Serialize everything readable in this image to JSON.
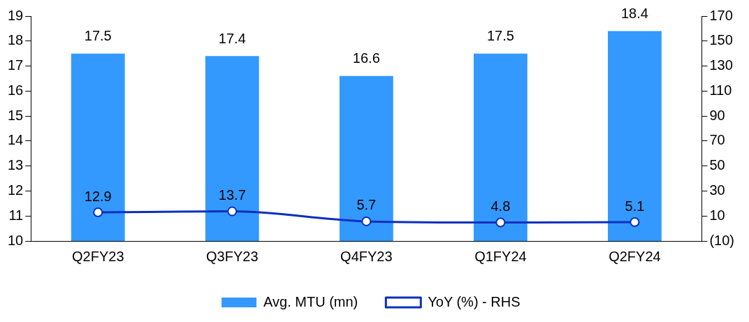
{
  "chart_data": {
    "type": "bar",
    "categories": [
      "Q2FY23",
      "Q3FY23",
      "Q4FY23",
      "Q1FY24",
      "Q2FY24"
    ],
    "series": [
      {
        "name": "Avg. MTU (mn)",
        "color": "#3399ff",
        "values": [
          17.5,
          17.4,
          16.6,
          17.5,
          18.4
        ]
      },
      {
        "name": "YoY (%) - RHS",
        "type": "line",
        "axis": "y2",
        "color": "#0a2fbf",
        "marker": "circle",
        "values": [
          12.9,
          13.7,
          5.7,
          4.8,
          5.1
        ]
      }
    ],
    "ylim": [
      10,
      19
    ],
    "yticks": [
      10,
      11,
      12,
      13,
      14,
      15,
      16,
      17,
      18,
      19
    ],
    "y2lim": [
      -10,
      170
    ],
    "y2ticks": [
      {
        "value": -10,
        "label": "(10)"
      },
      10,
      30,
      50,
      70,
      90,
      110,
      130,
      150,
      170
    ],
    "data_labels": true,
    "grid": false,
    "legend": "bottom"
  }
}
